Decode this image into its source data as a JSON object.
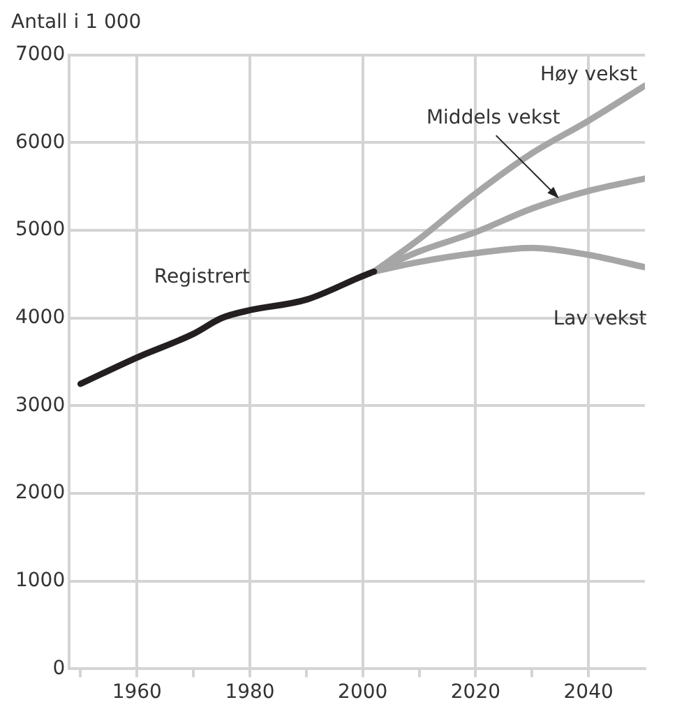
{
  "chart_data": {
    "type": "line",
    "ylabel": "Antall i 1 000",
    "xlim": [
      1948,
      2050
    ],
    "ylim": [
      0,
      7000
    ],
    "xticks": [
      {
        "value": 1950,
        "label": null
      },
      1960,
      {
        "value": 1970,
        "label": null
      },
      1980,
      {
        "value": 1990,
        "label": null
      },
      2000,
      {
        "value": 2010,
        "label": null
      },
      2020,
      {
        "value": 2030,
        "label": null
      },
      2040
    ],
    "yticks": [
      0,
      1000,
      2000,
      3000,
      4000,
      5000,
      6000,
      7000
    ],
    "grid": true,
    "legend": false,
    "marker": "none",
    "line_style": "solid",
    "series": [
      {
        "color": "#231f20",
        "x": [
          1950,
          1960,
          1970,
          1975,
          1980,
          1990,
          2000,
          2002
        ],
        "values": [
          3250,
          3550,
          3820,
          4000,
          4090,
          4210,
          4480,
          4530
        ]
      },
      {
        "color": "#a6a6a6",
        "x": [
          2002,
          2010,
          2020,
          2030,
          2040,
          2050
        ],
        "values": [
          4530,
          4900,
          5420,
          5880,
          6250,
          6650
        ]
      },
      {
        "color": "#a6a6a6",
        "x": [
          2002,
          2010,
          2020,
          2030,
          2040,
          2050
        ],
        "values": [
          4530,
          4760,
          4980,
          5250,
          5450,
          5590
        ]
      },
      {
        "color": "#a6a6a6",
        "x": [
          2002,
          2010,
          2020,
          2030,
          2040,
          2050
        ],
        "values": [
          4530,
          4640,
          4740,
          4800,
          4720,
          4580
        ]
      }
    ],
    "annotations": [
      {
        "text": "Registrert",
        "x": 1973,
        "y": 3950
      },
      {
        "text": "Høy vekst",
        "x": 2045,
        "y": 6420
      },
      {
        "text": "Middels vekst",
        "x": 2035,
        "y": 5350
      },
      {
        "text": "Lav vekst",
        "x": 2045,
        "y": 4650
      }
    ]
  }
}
